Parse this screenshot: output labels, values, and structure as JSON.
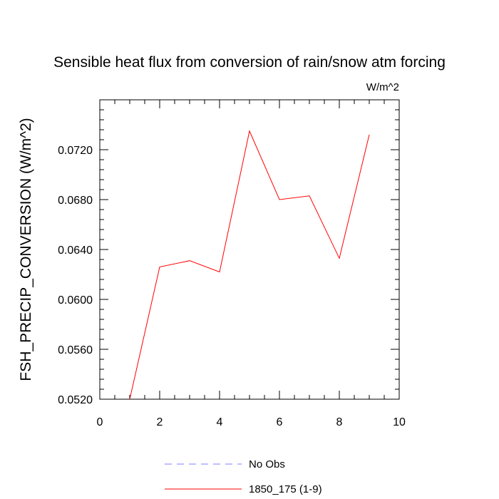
{
  "chart_data": {
    "type": "line",
    "title": "Sensible heat flux from conversion of rain/snow atm forcing",
    "units": "W/m^2",
    "xlabel": "",
    "ylabel": "FSH_PRECIP_CONVERSION  (W/m^2)",
    "xlim": [
      0,
      10
    ],
    "ylim": [
      0.052,
      0.076
    ],
    "x_ticks": [
      "0",
      "2",
      "4",
      "6",
      "8",
      "10"
    ],
    "y_ticks": [
      "0.0520",
      "0.0560",
      "0.0600",
      "0.0640",
      "0.0680",
      "0.0720"
    ],
    "grid": false,
    "legend_position": "bottom",
    "series": [
      {
        "name": "No Obs",
        "color": "#8080ff",
        "dashed": true,
        "x": [],
        "y": []
      },
      {
        "name": "1850_175 (1-9)",
        "color": "#ff0000",
        "dashed": false,
        "x": [
          1,
          2,
          3,
          4,
          5,
          6,
          7,
          8,
          9
        ],
        "y": [
          0.052,
          0.0626,
          0.0631,
          0.0622,
          0.0735,
          0.068,
          0.0683,
          0.0633,
          0.0732
        ]
      }
    ]
  }
}
